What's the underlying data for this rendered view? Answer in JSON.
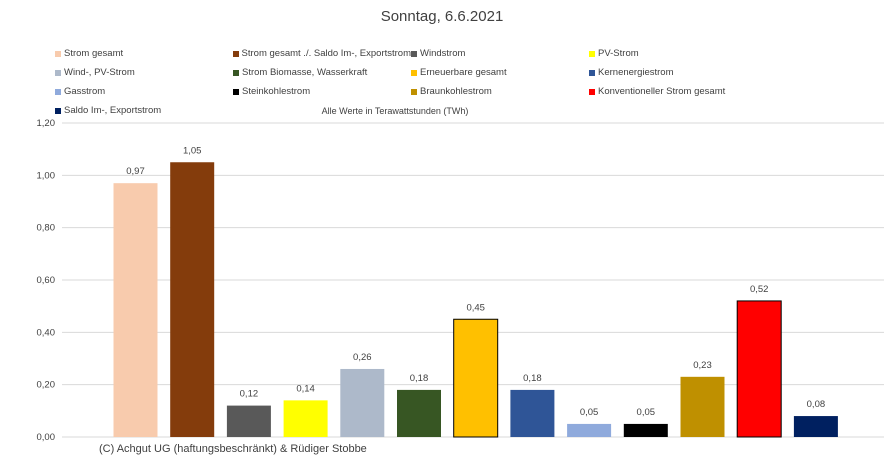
{
  "chart_data": {
    "type": "bar",
    "title": "Sonntag, 6.6.2021",
    "subtitle": "Alle Werte in Terawattstunden (TWh)",
    "ylim": [
      0,
      1.2
    ],
    "yticks": [
      "0,00",
      "0,20",
      "0,40",
      "0,60",
      "0,80",
      "1,00",
      "1,20"
    ],
    "grid": true,
    "legend_position": "top",
    "series": [
      {
        "name": "Strom gesamt",
        "value": 0.97,
        "label": "0,97",
        "color": "#F8CBAD"
      },
      {
        "name": "Strom gesamt ./. Saldo Im-, Exportstrom",
        "value": 1.05,
        "label": "1,05",
        "color": "#843C0C"
      },
      {
        "name": "Windstrom",
        "value": 0.12,
        "label": "0,12",
        "color": "#595959"
      },
      {
        "name": "PV-Strom",
        "value": 0.14,
        "label": "0,14",
        "color": "#FFFF00"
      },
      {
        "name": "Wind-, PV-Strom",
        "value": 0.26,
        "label": "0,26",
        "color": "#ADB9CA"
      },
      {
        "name": "Strom Biomasse, Wasserkraft",
        "value": 0.18,
        "label": "0,18",
        "color": "#375623"
      },
      {
        "name": "Erneuerbare gesamt",
        "value": 0.45,
        "label": "0,45",
        "color": "#FFC000"
      },
      {
        "name": "Kernenergiestrom",
        "value": 0.18,
        "label": "0,18",
        "color": "#2F5597"
      },
      {
        "name": "Gasstrom",
        "value": 0.05,
        "label": "0,05",
        "color": "#8FAADC"
      },
      {
        "name": "Steinkohlestrom",
        "value": 0.05,
        "label": "0,05",
        "color": "#000000"
      },
      {
        "name": "Braunkohlestrom",
        "value": 0.23,
        "label": "0,23",
        "color": "#BF9000"
      },
      {
        "name": "Konventioneller Strom gesamt",
        "value": 0.52,
        "label": "0,52",
        "color": "#FF0000"
      },
      {
        "name": "Saldo Im-, Exportstrom",
        "value": 0.08,
        "label": "0,08",
        "color": "#002060"
      }
    ]
  },
  "footer": {
    "copyright": "(C) Achgut UG (haftungsbeschränkt) & Rüdiger Stobbe"
  }
}
